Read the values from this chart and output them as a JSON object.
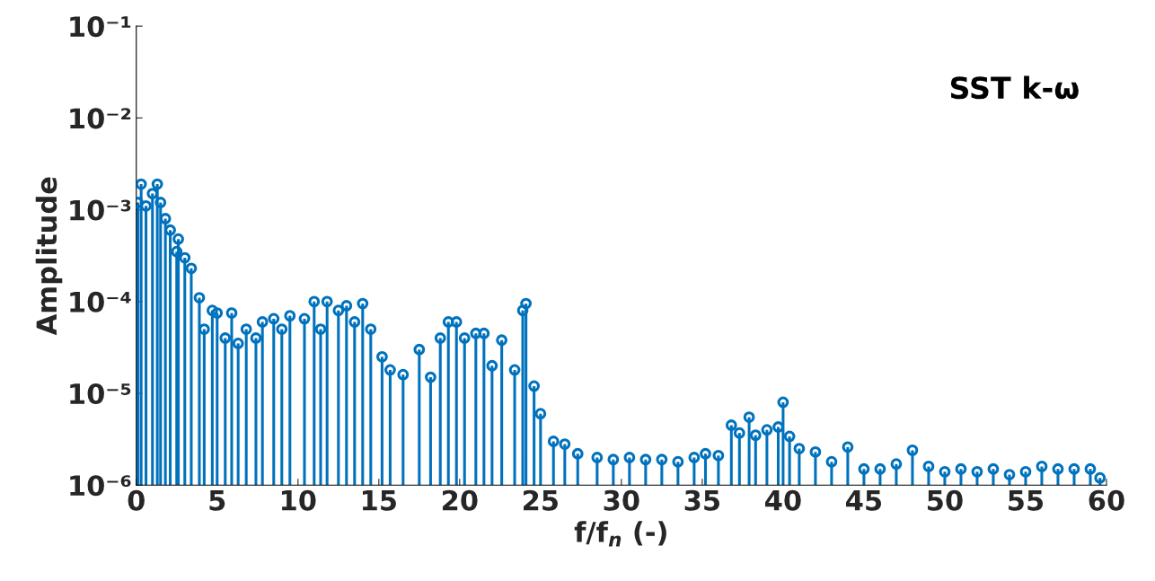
{
  "chart_data": {
    "type": "lollipop",
    "xlabel": "f/f$_{n}$ (-)",
    "ylabel": "Amplitude",
    "annotations": [
      "SST k-ω"
    ],
    "log": "y",
    "grid": false,
    "marker": "circle",
    "xlim": [
      0,
      60
    ],
    "xticks": [
      0,
      5,
      10,
      15,
      20,
      25,
      30,
      35,
      40,
      45,
      50,
      55,
      60
    ],
    "ylim": [
      1e-06,
      0.1
    ],
    "yticks": [
      {
        "value": 1e-06,
        "label": "10⁻⁶"
      },
      {
        "value": 1e-05,
        "label": "10⁻⁵"
      },
      {
        "value": 0.0001,
        "label": "10⁻⁴"
      },
      {
        "value": 0.001,
        "label": "10⁻³"
      },
      {
        "value": 0.01,
        "label": "10⁻²"
      },
      {
        "value": 0.1,
        "label": "10⁻¹"
      }
    ],
    "series": [
      {
        "color": "#0072bd",
        "x": [
          0.1,
          0.3,
          0.6,
          1.0,
          1.3,
          1.5,
          1.8,
          2.1,
          2.5,
          2.6,
          3.0,
          3.4,
          3.9,
          4.2,
          4.7,
          5.0,
          5.5,
          5.9,
          6.3,
          6.8,
          7.4,
          7.8,
          8.5,
          9.0,
          9.5,
          10.4,
          11.0,
          11.4,
          11.8,
          12.5,
          13.0,
          13.5,
          14.0,
          14.5,
          15.2,
          15.7,
          16.5,
          17.5,
          18.2,
          18.8,
          19.3,
          19.8,
          20.3,
          21.0,
          21.5,
          22.0,
          22.6,
          23.4,
          23.9,
          24.1,
          24.6,
          25.0,
          25.8,
          26.5,
          27.3,
          28.5,
          29.5,
          30.5,
          31.5,
          32.5,
          33.5,
          34.5,
          35.2,
          36.0,
          36.8,
          37.3,
          37.9,
          38.3,
          39.0,
          39.7,
          40.0,
          40.4,
          41.0,
          42.0,
          43.0,
          44.0,
          45.0,
          46.0,
          47.0,
          48.0,
          49.0,
          50.0,
          51.0,
          52.0,
          53.0,
          54.0,
          55.0,
          56.0,
          57.0,
          58.0,
          59.0,
          59.6
        ],
        "values": [
          0.0012,
          0.0019,
          0.0011,
          0.0015,
          0.0019,
          0.0012,
          0.0008,
          0.0006,
          0.00035,
          0.00048,
          0.0003,
          0.00023,
          0.00011,
          5e-05,
          8e-05,
          7.5e-05,
          4e-05,
          7.5e-05,
          3.5e-05,
          5e-05,
          4e-05,
          6e-05,
          6.5e-05,
          5e-05,
          7e-05,
          6.5e-05,
          0.0001,
          5e-05,
          0.0001,
          8e-05,
          9e-05,
          6e-05,
          9.5e-05,
          5e-05,
          2.5e-05,
          1.8e-05,
          1.6e-05,
          3e-05,
          1.5e-05,
          4e-05,
          6e-05,
          6e-05,
          4e-05,
          4.5e-05,
          4.5e-05,
          2e-05,
          3.8e-05,
          1.8e-05,
          8e-05,
          9.5e-05,
          1.2e-05,
          6e-06,
          3e-06,
          2.8e-06,
          2.2e-06,
          2e-06,
          1.9e-06,
          2e-06,
          1.9e-06,
          1.9e-06,
          1.8e-06,
          2e-06,
          2.2e-06,
          2.1e-06,
          4.5e-06,
          3.7e-06,
          5.5e-06,
          3.5e-06,
          4e-06,
          4.3e-06,
          8e-06,
          3.4e-06,
          2.5e-06,
          2.3e-06,
          1.8e-06,
          2.6e-06,
          1.5e-06,
          1.5e-06,
          1.7e-06,
          2.4e-06,
          1.6e-06,
          1.4e-06,
          1.5e-06,
          1.4e-06,
          1.5e-06,
          1.3e-06,
          1.4e-06,
          1.6e-06,
          1.5e-06,
          1.5e-06,
          1.5e-06,
          1.2e-06
        ]
      }
    ]
  }
}
